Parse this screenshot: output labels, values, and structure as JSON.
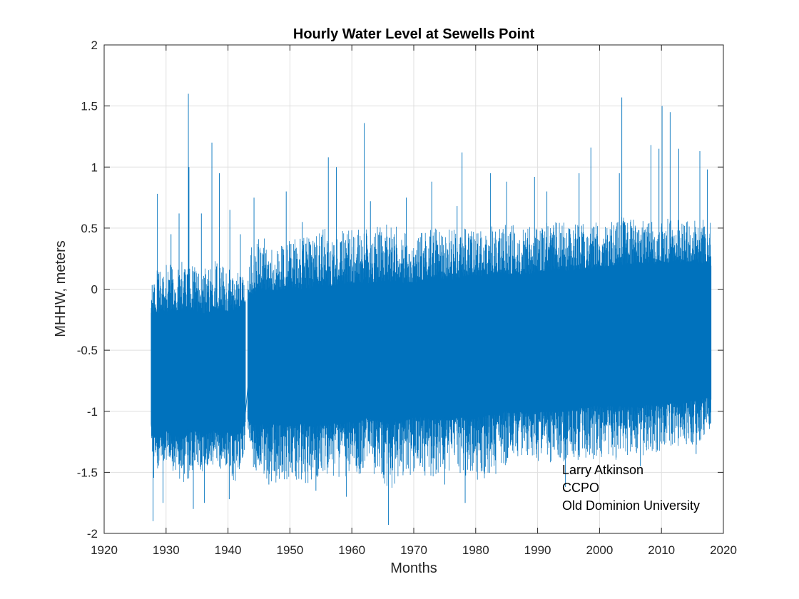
{
  "chart_data": {
    "type": "line",
    "title": "Hourly Water Level at Sewells Point",
    "xlabel": "Months",
    "ylabel": "MHHW, meters",
    "xlim": [
      1920,
      2020
    ],
    "ylim": [
      -2,
      2
    ],
    "xticks": [
      1920,
      1930,
      1940,
      1950,
      1960,
      1970,
      1980,
      1990,
      2000,
      2010,
      2020
    ],
    "yticks": [
      -2,
      -1.5,
      -1,
      -0.5,
      0,
      0.5,
      1,
      1.5,
      2
    ],
    "grid": true,
    "series_color": "#0072bd",
    "annotation": [
      "Larry Atkinson",
      "CCPO",
      "Old Dominion University"
    ],
    "annotation_placement": "bottom-right",
    "series": [
      {
        "name": "Hourly water level",
        "segments": [
          {
            "x": [
              1927.6,
              1928,
              1929,
              1930,
              1931,
              1932,
              1933,
              1934,
              1935,
              1936,
              1937,
              1938,
              1939,
              1940,
              1941,
              1942,
              1942.8
            ],
            "envelope_low": [
              -1.2,
              -1.6,
              -1.5,
              -1.45,
              -1.5,
              -1.55,
              -1.6,
              -1.55,
              -1.45,
              -1.5,
              -1.45,
              -1.45,
              -1.5,
              -1.45,
              -1.6,
              -1.45,
              -1.3
            ],
            "envelope_high": [
              0.0,
              0.2,
              0.15,
              0.2,
              0.2,
              0.2,
              0.25,
              0.2,
              0.2,
              0.2,
              0.15,
              0.25,
              0.2,
              0.15,
              0.2,
              0.15,
              0.1
            ],
            "core_low": [
              -1.1,
              -1.2,
              -1.2,
              -1.15,
              -1.2,
              -1.2,
              -1.2,
              -1.15,
              -1.15,
              -1.2,
              -1.15,
              -1.15,
              -1.2,
              -1.15,
              -1.2,
              -1.15,
              -1.1
            ],
            "core_high": [
              -0.2,
              -0.2,
              -0.2,
              -0.2,
              -0.18,
              -0.2,
              -0.15,
              -0.18,
              -0.2,
              -0.2,
              -0.2,
              -0.15,
              -0.18,
              -0.2,
              -0.18,
              -0.15,
              -0.1
            ],
            "spikes": [
              {
                "x": 1927.9,
                "y": -1.9
              },
              {
                "x": 1928.6,
                "y": 0.78
              },
              {
                "x": 1929.5,
                "y": -1.75
              },
              {
                "x": 1930.8,
                "y": 0.45
              },
              {
                "x": 1932.1,
                "y": 0.62
              },
              {
                "x": 1933.6,
                "y": 1.6
              },
              {
                "x": 1933.7,
                "y": 1.0
              },
              {
                "x": 1934.4,
                "y": -1.8
              },
              {
                "x": 1935.7,
                "y": 0.62
              },
              {
                "x": 1936.2,
                "y": -1.75
              },
              {
                "x": 1937.4,
                "y": 1.2
              },
              {
                "x": 1938.6,
                "y": 0.95
              },
              {
                "x": 1940.2,
                "y": -1.72
              },
              {
                "x": 1940.3,
                "y": 0.65
              },
              {
                "x": 1942.0,
                "y": 0.45
              }
            ]
          },
          {
            "x": [
              1943.2,
              1944,
              1945,
              1948,
              1950,
              1953,
              1956,
              1960,
              1963,
              1966,
              1970,
              1973,
              1976,
              1980,
              1984,
              1988,
              1992,
              1996,
              2000,
              2004,
              2008,
              2012,
              2015,
              2018
            ],
            "envelope_low": [
              -1.2,
              -1.45,
              -1.55,
              -1.6,
              -1.55,
              -1.6,
              -1.55,
              -1.55,
              -1.5,
              -1.65,
              -1.5,
              -1.55,
              -1.5,
              -1.6,
              -1.5,
              -1.4,
              -1.45,
              -1.4,
              -1.4,
              -1.4,
              -1.35,
              -1.3,
              -1.3,
              -1.2
            ],
            "envelope_high": [
              0.2,
              0.4,
              0.45,
              0.35,
              0.4,
              0.45,
              0.5,
              0.5,
              0.5,
              0.55,
              0.45,
              0.5,
              0.5,
              0.5,
              0.55,
              0.5,
              0.55,
              0.55,
              0.55,
              0.6,
              0.55,
              0.6,
              0.6,
              0.55
            ],
            "core_low": [
              -1.05,
              -1.1,
              -1.1,
              -1.1,
              -1.1,
              -1.1,
              -1.1,
              -1.08,
              -1.05,
              -1.1,
              -1.05,
              -1.05,
              -1.05,
              -1.05,
              -1.0,
              -1.0,
              -1.0,
              -0.98,
              -0.95,
              -0.95,
              -0.95,
              -0.93,
              -0.9,
              -0.88
            ],
            "core_high": [
              -0.1,
              -0.05,
              0.0,
              -0.02,
              0.0,
              0.0,
              0.02,
              0.05,
              0.05,
              0.05,
              0.05,
              0.08,
              0.08,
              0.1,
              0.12,
              0.12,
              0.15,
              0.15,
              0.18,
              0.2,
              0.2,
              0.22,
              0.22,
              0.2
            ],
            "spikes": [
              {
                "x": 1944.2,
                "y": 0.75
              },
              {
                "x": 1946.6,
                "y": -1.6
              },
              {
                "x": 1949.4,
                "y": 0.8
              },
              {
                "x": 1952.0,
                "y": 0.55
              },
              {
                "x": 1954.2,
                "y": -1.65
              },
              {
                "x": 1956.2,
                "y": 1.08
              },
              {
                "x": 1957.5,
                "y": 1.0
              },
              {
                "x": 1959.1,
                "y": -1.7
              },
              {
                "x": 1962.0,
                "y": 1.36
              },
              {
                "x": 1963.0,
                "y": 0.72
              },
              {
                "x": 1965.9,
                "y": -1.93
              },
              {
                "x": 1968.8,
                "y": 0.75
              },
              {
                "x": 1972.9,
                "y": 0.88
              },
              {
                "x": 1975.0,
                "y": -1.6
              },
              {
                "x": 1977.0,
                "y": 0.68
              },
              {
                "x": 1977.8,
                "y": 1.12
              },
              {
                "x": 1978.3,
                "y": -1.75
              },
              {
                "x": 1982.4,
                "y": 0.95
              },
              {
                "x": 1985.0,
                "y": 0.88
              },
              {
                "x": 1989.5,
                "y": 0.92
              },
              {
                "x": 1991.5,
                "y": 0.8
              },
              {
                "x": 1994.5,
                "y": -1.62
              },
              {
                "x": 1996.7,
                "y": 0.95
              },
              {
                "x": 1998.6,
                "y": 1.16
              },
              {
                "x": 2003.2,
                "y": 0.95
              },
              {
                "x": 2003.6,
                "y": 1.57
              },
              {
                "x": 2006.6,
                "y": -1.45
              },
              {
                "x": 2008.3,
                "y": 1.18
              },
              {
                "x": 2009.6,
                "y": 1.15
              },
              {
                "x": 2010.1,
                "y": 1.5
              },
              {
                "x": 2011.4,
                "y": 1.45
              },
              {
                "x": 2012.8,
                "y": 1.15
              },
              {
                "x": 2015.6,
                "y": -1.35
              },
              {
                "x": 2016.2,
                "y": 1.13
              },
              {
                "x": 2017.4,
                "y": 0.98
              }
            ]
          }
        ],
        "bridge_line": {
          "x": [
            1942.8,
            1943.3
          ],
          "y": [
            -1.02,
            -0.75
          ]
        }
      }
    ]
  }
}
